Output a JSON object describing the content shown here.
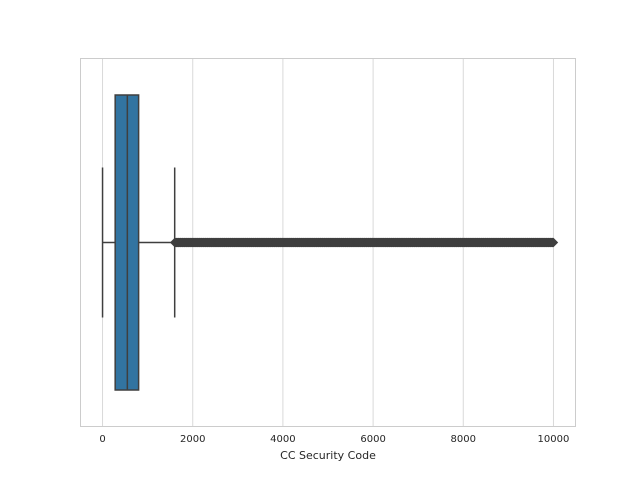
{
  "chart_data": {
    "type": "box",
    "orientation": "horizontal",
    "xlabel": "CC Security Code",
    "xlim": [
      -500,
      10500
    ],
    "xticks": [
      0,
      2000,
      4000,
      6000,
      8000,
      10000
    ],
    "xtick_labels": [
      "0",
      "2000",
      "4000",
      "6000",
      "8000",
      "10000"
    ],
    "grid": "vertical",
    "box": {
      "whisker_low": 0,
      "q1": 280,
      "median": 550,
      "q3": 800,
      "whisker_high": 1600,
      "outliers_range": [
        1601,
        9999
      ]
    },
    "colors": {
      "box_fill": "#3274a1",
      "line": "#3f3f3f",
      "grid": "#d9d9d9",
      "frame": "#cccccc"
    }
  }
}
